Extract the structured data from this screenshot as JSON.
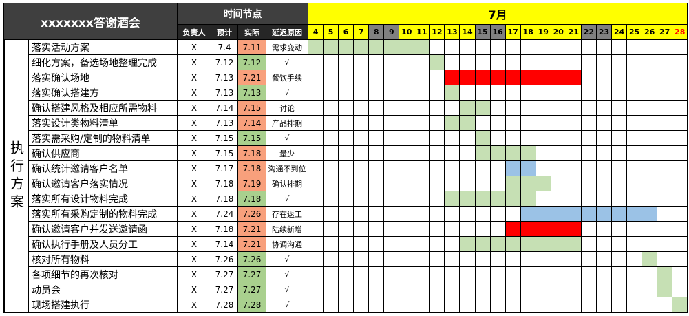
{
  "header": {
    "title": "xxxxxxx答谢酒会",
    "time_nodes": "时间节点",
    "owner": "负责人",
    "planned": "预计",
    "actual": "实际",
    "delay_reason": "延迟原因",
    "month": "7月",
    "side_label": "执行方案"
  },
  "days": [
    "4",
    "5",
    "6",
    "7",
    "8",
    "9",
    "10",
    "11",
    "12",
    "13",
    "14",
    "15",
    "16",
    "17",
    "18",
    "19",
    "20",
    "21",
    "22",
    "23",
    "24",
    "25",
    "26",
    "27",
    "28"
  ],
  "day_styles": {
    "8": "gray",
    "9": "gray",
    "15": "gray",
    "16": "gray",
    "22": "gray",
    "23": "gray",
    "28": "red"
  },
  "colors": {
    "green": "#c6e0b4",
    "red": "#ff0000",
    "blue": "#9bc2e6",
    "salmon": "#f8a07c",
    "actual_green": "#a9d08e",
    "yellow": "#ffff00",
    "gray": "#808080"
  },
  "tasks": [
    {
      "name": "落实活动方案",
      "owner": "X",
      "plan": "7.4",
      "actual": "7.11",
      "actual_color": "salmon",
      "reason": "需求变动",
      "bars": [
        {
          "start": 4,
          "end": 11,
          "color": "green"
        }
      ]
    },
    {
      "name": "细化方案，备选场地整理完成",
      "owner": "X",
      "plan": "7.12",
      "actual": "7.12",
      "actual_color": "actual_green",
      "reason": "√",
      "bars": [
        {
          "start": 12,
          "end": 12,
          "color": "green"
        }
      ]
    },
    {
      "name": "落实确认场地",
      "owner": "X",
      "plan": "7.13",
      "actual": "7.21",
      "actual_color": "salmon",
      "reason": "餐饮手续",
      "bars": [
        {
          "start": 13,
          "end": 21,
          "color": "red"
        }
      ]
    },
    {
      "name": "落实确认搭建方",
      "owner": "X",
      "plan": "7.13",
      "actual": "7.13",
      "actual_color": "actual_green",
      "reason": "√",
      "bars": [
        {
          "start": 13,
          "end": 13,
          "color": "green"
        }
      ]
    },
    {
      "name": "确认搭建风格及相应所需物料",
      "owner": "X",
      "plan": "7.14",
      "actual": "7.15",
      "actual_color": "salmon",
      "reason": "讨论",
      "bars": [
        {
          "start": 14,
          "end": 15,
          "color": "green"
        }
      ]
    },
    {
      "name": "落实设计类物料清单",
      "owner": "X",
      "plan": "7.13",
      "actual": "7.14",
      "actual_color": "salmon",
      "reason": "产品排期",
      "bars": [
        {
          "start": 13,
          "end": 14,
          "color": "green"
        }
      ]
    },
    {
      "name": "落实需采购/定制的物料清单",
      "owner": "X",
      "plan": "7.15",
      "actual": "7.15",
      "actual_color": "actual_green",
      "reason": "√",
      "bars": [
        {
          "start": 15,
          "end": 15,
          "color": "green"
        }
      ]
    },
    {
      "name": "确认供应商",
      "owner": "X",
      "plan": "7.15",
      "actual": "7.18",
      "actual_color": "salmon",
      "reason": "量少",
      "bars": [
        {
          "start": 15,
          "end": 18,
          "color": "green"
        }
      ]
    },
    {
      "name": "确认统计邀请客户名单",
      "owner": "X",
      "plan": "7.17",
      "actual": "7.18",
      "actual_color": "salmon",
      "reason": "沟通不到位",
      "bars": [
        {
          "start": 17,
          "end": 18,
          "color": "blue"
        }
      ]
    },
    {
      "name": "确认邀请客户落实情况",
      "owner": "X",
      "plan": "7.18",
      "actual": "7.19",
      "actual_color": "salmon",
      "reason": "确认排期",
      "bars": [
        {
          "start": 17,
          "end": 19,
          "color": "green"
        }
      ]
    },
    {
      "name": "落实所有设计物料完成",
      "owner": "X",
      "plan": "7.18",
      "actual": "7.18",
      "actual_color": "actual_green",
      "reason": "√",
      "bars": [
        {
          "start": 13,
          "end": 18,
          "color": "green"
        }
      ]
    },
    {
      "name": "落实所有采购定制的物料完成",
      "owner": "X",
      "plan": "7.24",
      "actual": "7.26",
      "actual_color": "salmon",
      "reason": "存在返工",
      "bars": [
        {
          "start": 18,
          "end": 26,
          "color": "blue"
        }
      ]
    },
    {
      "name": "确认邀请客户并发送邀请函",
      "owner": "X",
      "plan": "7.18",
      "actual": "7.21",
      "actual_color": "salmon",
      "reason": "陆续新增",
      "bars": [
        {
          "start": 17,
          "end": 21,
          "color": "red"
        }
      ]
    },
    {
      "name": "确认执行手册及人员分工",
      "owner": "X",
      "plan": "7.14",
      "actual": "7.21",
      "actual_color": "salmon",
      "reason": "协调沟通",
      "bars": [
        {
          "start": 14,
          "end": 21,
          "color": "green"
        }
      ]
    },
    {
      "name": "核对所有物料",
      "owner": "X",
      "plan": "7.26",
      "actual": "7.26",
      "actual_color": "actual_green",
      "reason": "√",
      "bars": [
        {
          "start": 26,
          "end": 26,
          "color": "green"
        }
      ]
    },
    {
      "name": "各项细节的再次核对",
      "owner": "X",
      "plan": "7.27",
      "actual": "7.27",
      "actual_color": "actual_green",
      "reason": "√",
      "bars": [
        {
          "start": 27,
          "end": 27,
          "color": "green"
        }
      ]
    },
    {
      "name": "动员会",
      "owner": "X",
      "plan": "7.27",
      "actual": "7.27",
      "actual_color": "actual_green",
      "reason": "√",
      "bars": [
        {
          "start": 27,
          "end": 27,
          "color": "green"
        }
      ]
    },
    {
      "name": "现场搭建执行",
      "owner": "X",
      "plan": "7.28",
      "actual": "7.28",
      "actual_color": "actual_green",
      "reason": "√",
      "bars": [
        {
          "start": 28,
          "end": 28,
          "color": "green"
        }
      ]
    }
  ]
}
